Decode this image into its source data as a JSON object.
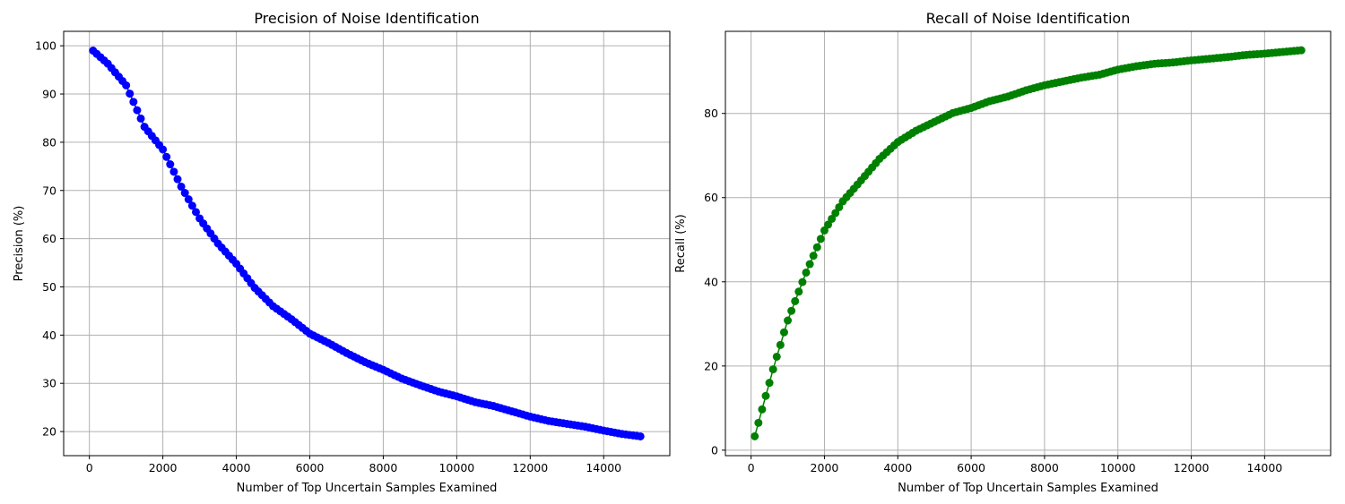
{
  "colors": {
    "precision": "#0000ff",
    "recall": "#008000"
  },
  "chart_data": [
    {
      "type": "line",
      "title": "Precision of Noise Identification",
      "xlabel": "Number of Top Uncertain Samples Examined",
      "ylabel": "Precision (%)",
      "xlim": [
        -700,
        15800
      ],
      "ylim": [
        15,
        103
      ],
      "xticks": [
        0,
        2000,
        4000,
        6000,
        8000,
        10000,
        12000,
        14000
      ],
      "yticks": [
        20,
        30,
        40,
        50,
        60,
        70,
        80,
        90,
        100
      ],
      "grid": true,
      "marker": "circle",
      "color": "#0000ff",
      "x": [
        100,
        500,
        1000,
        1500,
        2000,
        2500,
        3000,
        3500,
        4000,
        4500,
        5000,
        5500,
        6000,
        6500,
        7000,
        7500,
        8000,
        8500,
        9000,
        9500,
        10000,
        10500,
        11000,
        11500,
        12000,
        12500,
        13000,
        13500,
        14000,
        14500,
        15000
      ],
      "y": [
        99,
        96.3,
        91.8,
        83.2,
        78.5,
        70.8,
        64.2,
        59.0,
        54.8,
        49.8,
        46.0,
        43.3,
        40.3,
        38.4,
        36.3,
        34.4,
        32.8,
        31.0,
        29.6,
        28.3,
        27.3,
        26.1,
        25.3,
        24.2,
        23.1,
        22.2,
        21.6,
        21.0,
        20.2,
        19.5,
        19.0
      ]
    },
    {
      "type": "line",
      "title": "Recall of Noise Identification",
      "xlabel": "Number of Top Uncertain Samples Examined",
      "ylabel": "Recall (%)",
      "xlim": [
        -700,
        15800
      ],
      "ylim": [
        -1.3,
        99.5
      ],
      "xticks": [
        0,
        2000,
        4000,
        6000,
        8000,
        10000,
        12000,
        14000
      ],
      "yticks": [
        0,
        20,
        40,
        60,
        80
      ],
      "grid": true,
      "marker": "circle",
      "color": "#008000",
      "x": [
        100,
        200,
        300,
        400,
        500,
        600,
        700,
        800,
        900,
        1000,
        1200,
        1500,
        2000,
        2500,
        3000,
        3500,
        4000,
        4500,
        5000,
        5500,
        6000,
        6500,
        7000,
        7500,
        8000,
        8500,
        9000,
        9500,
        10000,
        10500,
        11000,
        11500,
        12000,
        12500,
        13000,
        13500,
        14000,
        14500,
        15000
      ],
      "y": [
        3.3,
        6.5,
        9.7,
        12.9,
        16.0,
        19.2,
        22.2,
        25.0,
        28.0,
        30.8,
        35.4,
        42.2,
        52.2,
        59.1,
        64.1,
        69.2,
        73.2,
        75.9,
        78.0,
        80.1,
        81.3,
        82.9,
        84.0,
        85.5,
        86.7,
        87.6,
        88.5,
        89.2,
        90.4,
        91.2,
        91.8,
        92.1,
        92.6,
        93.0,
        93.4,
        93.9,
        94.2,
        94.6,
        95.0
      ]
    }
  ]
}
